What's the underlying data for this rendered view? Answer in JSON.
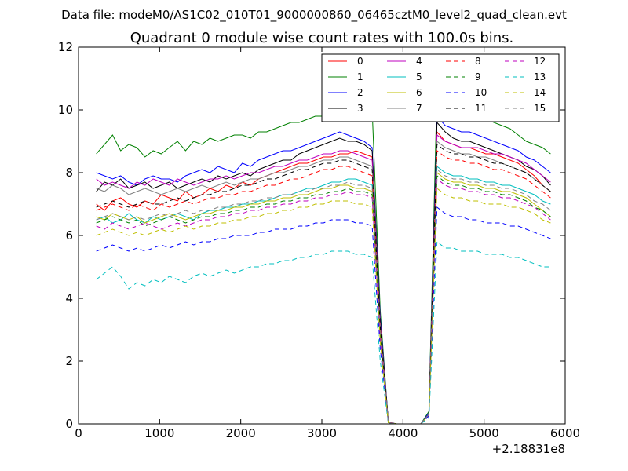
{
  "figure": {
    "suptitle": "Data file: modeM0/AS1C02_010T01_9000000860_06465cztM0_level2_quad_clean.evt"
  },
  "chart_data": {
    "type": "line",
    "title": "Quadrant 0 module wise count rates with 100.0s bins.",
    "xlabel": "",
    "ylabel": "",
    "x_offset_label": "+2.18831e8",
    "xlim": [
      0,
      6000
    ],
    "ylim": [
      0,
      12
    ],
    "xticks": [
      "0",
      "1000",
      "2000",
      "3000",
      "4000",
      "5000",
      "6000"
    ],
    "yticks": [
      "0",
      "2",
      "4",
      "6",
      "8",
      "10",
      "12"
    ],
    "grid": false,
    "legend_placement": "top-right",
    "legend_columns": 4,
    "x": [
      220,
      320,
      420,
      520,
      620,
      720,
      820,
      920,
      1020,
      1120,
      1220,
      1320,
      1420,
      1520,
      1620,
      1720,
      1820,
      1920,
      2020,
      2120,
      2220,
      2320,
      2420,
      2520,
      2620,
      2720,
      2820,
      2920,
      3020,
      3120,
      3220,
      3320,
      3420,
      3520,
      3620,
      3720,
      3820,
      3920,
      4020,
      4120,
      4220,
      4320,
      4420,
      4520,
      4620,
      4720,
      4820,
      4920,
      5020,
      5120,
      5220,
      5320,
      5420,
      5520,
      5620,
      5720,
      5820
    ],
    "series": [
      {
        "name": "0",
        "color": "#ff0000",
        "dash": "solid",
        "values": [
          7.0,
          6.8,
          7.1,
          7.2,
          7.0,
          6.9,
          7.1,
          7.0,
          7.3,
          7.2,
          7.1,
          7.4,
          7.2,
          7.3,
          7.5,
          7.4,
          7.6,
          7.5,
          7.7,
          7.6,
          7.8,
          7.9,
          8.0,
          8.1,
          8.2,
          8.3,
          8.3,
          8.4,
          8.5,
          8.5,
          8.6,
          8.6,
          8.7,
          8.6,
          8.5,
          3.2,
          0.05,
          0.0,
          0.0,
          0.0,
          0.0,
          0.3,
          9.3,
          9.0,
          8.9,
          8.8,
          8.8,
          8.7,
          8.6,
          8.6,
          8.5,
          8.4,
          8.3,
          8.1,
          7.9,
          7.6,
          7.4
        ]
      },
      {
        "name": "1",
        "color": "#008000",
        "dash": "solid",
        "values": [
          8.6,
          8.9,
          9.2,
          8.7,
          8.9,
          8.8,
          8.5,
          8.7,
          8.6,
          8.8,
          9.0,
          8.7,
          9.0,
          8.9,
          9.1,
          9.0,
          9.1,
          9.2,
          9.2,
          9.1,
          9.3,
          9.3,
          9.4,
          9.5,
          9.6,
          9.6,
          9.7,
          9.8,
          9.8,
          9.9,
          10.0,
          10.0,
          10.1,
          10.1,
          10.0,
          3.6,
          0.05,
          0.0,
          0.0,
          0.0,
          0.0,
          0.4,
          10.6,
          10.3,
          10.1,
          10.0,
          9.9,
          9.8,
          9.7,
          9.6,
          9.5,
          9.4,
          9.2,
          9.0,
          8.9,
          8.8,
          8.6
        ]
      },
      {
        "name": "2",
        "color": "#0000ff",
        "dash": "solid",
        "values": [
          8.0,
          7.9,
          7.8,
          7.9,
          7.7,
          7.6,
          7.8,
          7.9,
          7.8,
          7.8,
          7.7,
          7.9,
          8.0,
          8.1,
          8.0,
          8.2,
          8.1,
          8.0,
          8.3,
          8.2,
          8.4,
          8.5,
          8.6,
          8.7,
          8.7,
          8.8,
          8.9,
          9.0,
          9.1,
          9.2,
          9.3,
          9.2,
          9.1,
          9.0,
          8.8,
          3.4,
          0.05,
          0.0,
          0.0,
          0.0,
          0.0,
          0.35,
          9.8,
          9.5,
          9.4,
          9.3,
          9.3,
          9.2,
          9.1,
          9.0,
          8.9,
          8.8,
          8.7,
          8.5,
          8.4,
          8.2,
          8.0
        ]
      },
      {
        "name": "3",
        "color": "#000000",
        "dash": "solid",
        "values": [
          7.4,
          7.7,
          7.6,
          7.8,
          7.5,
          7.6,
          7.7,
          7.5,
          7.6,
          7.7,
          7.5,
          7.6,
          7.7,
          7.8,
          7.7,
          7.9,
          7.8,
          7.9,
          8.0,
          7.9,
          8.1,
          8.2,
          8.3,
          8.4,
          8.4,
          8.6,
          8.7,
          8.8,
          8.9,
          9.0,
          9.1,
          9.0,
          9.0,
          8.9,
          8.7,
          3.3,
          0.05,
          0.0,
          0.0,
          0.0,
          0.0,
          0.3,
          9.6,
          9.3,
          9.1,
          9.0,
          9.0,
          8.9,
          8.8,
          8.7,
          8.6,
          8.5,
          8.4,
          8.2,
          8.1,
          7.9,
          7.6
        ]
      },
      {
        "name": "4",
        "color": "#bf00bf",
        "dash": "solid",
        "values": [
          7.8,
          7.6,
          7.7,
          7.6,
          7.5,
          7.7,
          7.6,
          7.8,
          7.7,
          7.6,
          7.8,
          7.7,
          7.6,
          7.7,
          7.8,
          7.8,
          7.9,
          7.8,
          7.9,
          8.0,
          8.0,
          8.1,
          8.2,
          8.2,
          8.3,
          8.4,
          8.4,
          8.5,
          8.6,
          8.6,
          8.7,
          8.7,
          8.6,
          8.5,
          8.4,
          3.2,
          0.05,
          0.0,
          0.0,
          0.0,
          0.0,
          0.3,
          9.2,
          9.0,
          8.9,
          8.8,
          8.8,
          8.8,
          8.7,
          8.6,
          8.6,
          8.5,
          8.4,
          8.3,
          8.1,
          7.9,
          7.7
        ]
      },
      {
        "name": "5",
        "color": "#00bfbf",
        "dash": "solid",
        "values": [
          6.5,
          6.6,
          6.4,
          6.5,
          6.7,
          6.5,
          6.4,
          6.6,
          6.5,
          6.6,
          6.7,
          6.6,
          6.5,
          6.7,
          6.8,
          6.8,
          6.9,
          6.9,
          7.0,
          7.0,
          7.1,
          7.1,
          7.2,
          7.3,
          7.3,
          7.4,
          7.5,
          7.5,
          7.6,
          7.7,
          7.7,
          7.8,
          7.8,
          7.7,
          7.6,
          2.9,
          0.04,
          0.0,
          0.0,
          0.0,
          0.0,
          0.3,
          8.2,
          8.0,
          7.9,
          7.9,
          7.8,
          7.8,
          7.7,
          7.7,
          7.6,
          7.6,
          7.5,
          7.4,
          7.3,
          7.1,
          7.0
        ]
      },
      {
        "name": "6",
        "color": "#bfbf00",
        "dash": "solid",
        "values": [
          6.6,
          6.5,
          6.7,
          6.6,
          6.5,
          6.6,
          6.4,
          6.5,
          6.6,
          6.7,
          6.6,
          6.5,
          6.6,
          6.7,
          6.7,
          6.8,
          6.8,
          6.9,
          6.9,
          7.0,
          7.0,
          7.1,
          7.1,
          7.2,
          7.2,
          7.3,
          7.3,
          7.4,
          7.5,
          7.5,
          7.6,
          7.6,
          7.5,
          7.5,
          7.4,
          2.8,
          0.04,
          0.0,
          0.0,
          0.0,
          0.0,
          0.3,
          8.0,
          7.8,
          7.7,
          7.7,
          7.6,
          7.6,
          7.5,
          7.5,
          7.4,
          7.4,
          7.3,
          7.2,
          7.0,
          6.8,
          6.6
        ]
      },
      {
        "name": "7",
        "color": "#808080",
        "dash": "solid",
        "values": [
          7.5,
          7.4,
          7.6,
          7.5,
          7.3,
          7.4,
          7.5,
          7.4,
          7.3,
          7.4,
          7.5,
          7.4,
          7.5,
          7.6,
          7.5,
          7.6,
          7.7,
          7.6,
          7.7,
          7.8,
          7.8,
          7.9,
          8.0,
          8.0,
          8.1,
          8.2,
          8.2,
          8.3,
          8.4,
          8.4,
          8.5,
          8.5,
          8.4,
          8.3,
          8.2,
          3.1,
          0.05,
          0.0,
          0.0,
          0.0,
          0.0,
          0.3,
          9.0,
          8.8,
          8.7,
          8.6,
          8.6,
          8.5,
          8.5,
          8.4,
          8.3,
          8.2,
          8.1,
          8.0,
          7.8,
          7.6,
          7.4
        ]
      },
      {
        "name": "8",
        "color": "#ff0000",
        "dash": "dashed",
        "values": [
          6.8,
          6.9,
          7.0,
          6.9,
          6.8,
          7.0,
          6.9,
          6.8,
          7.0,
          6.9,
          7.0,
          7.1,
          7.0,
          7.1,
          7.2,
          7.2,
          7.3,
          7.3,
          7.4,
          7.4,
          7.5,
          7.6,
          7.6,
          7.7,
          7.8,
          7.8,
          7.9,
          8.0,
          8.1,
          8.1,
          8.2,
          8.2,
          8.1,
          8.0,
          7.9,
          3.0,
          0.05,
          0.0,
          0.0,
          0.0,
          0.0,
          0.3,
          8.7,
          8.5,
          8.4,
          8.4,
          8.3,
          8.3,
          8.2,
          8.1,
          8.1,
          8.0,
          7.9,
          7.8,
          7.6,
          7.4,
          7.2
        ]
      },
      {
        "name": "9",
        "color": "#008000",
        "dash": "dashed",
        "values": [
          6.4,
          6.5,
          6.6,
          6.5,
          6.4,
          6.5,
          6.3,
          6.4,
          6.5,
          6.6,
          6.5,
          6.4,
          6.5,
          6.6,
          6.6,
          6.7,
          6.7,
          6.8,
          6.8,
          6.9,
          6.9,
          7.0,
          7.0,
          7.1,
          7.1,
          7.2,
          7.2,
          7.3,
          7.3,
          7.4,
          7.4,
          7.5,
          7.4,
          7.4,
          7.3,
          2.8,
          0.04,
          0.0,
          0.0,
          0.0,
          0.0,
          0.3,
          7.9,
          7.7,
          7.6,
          7.6,
          7.5,
          7.5,
          7.4,
          7.4,
          7.3,
          7.3,
          7.2,
          7.1,
          6.9,
          6.8,
          6.6
        ]
      },
      {
        "name": "10",
        "color": "#0000ff",
        "dash": "dashed",
        "values": [
          5.5,
          5.6,
          5.7,
          5.6,
          5.5,
          5.6,
          5.5,
          5.6,
          5.7,
          5.6,
          5.7,
          5.8,
          5.7,
          5.8,
          5.8,
          5.9,
          5.9,
          6.0,
          6.0,
          6.0,
          6.1,
          6.1,
          6.2,
          6.2,
          6.2,
          6.3,
          6.3,
          6.4,
          6.4,
          6.5,
          6.5,
          6.5,
          6.4,
          6.4,
          6.3,
          2.4,
          0.04,
          0.0,
          0.0,
          0.0,
          0.0,
          0.25,
          6.9,
          6.7,
          6.6,
          6.6,
          6.5,
          6.5,
          6.4,
          6.4,
          6.4,
          6.3,
          6.3,
          6.2,
          6.1,
          6.0,
          5.9
        ]
      },
      {
        "name": "11",
        "color": "#000000",
        "dash": "dashed",
        "values": [
          6.9,
          7.0,
          7.1,
          7.0,
          6.9,
          7.0,
          7.1,
          7.0,
          7.0,
          7.1,
          7.2,
          7.1,
          7.2,
          7.3,
          7.3,
          7.4,
          7.4,
          7.5,
          7.6,
          7.6,
          7.7,
          7.8,
          7.8,
          7.9,
          8.0,
          8.1,
          8.1,
          8.2,
          8.3,
          8.3,
          8.4,
          8.4,
          8.3,
          8.2,
          8.1,
          3.1,
          0.05,
          0.0,
          0.0,
          0.0,
          0.0,
          0.3,
          8.9,
          8.7,
          8.6,
          8.6,
          8.5,
          8.5,
          8.4,
          8.3,
          8.3,
          8.2,
          8.1,
          8.0,
          7.8,
          7.6,
          7.4
        ]
      },
      {
        "name": "12",
        "color": "#bf00bf",
        "dash": "dashed",
        "values": [
          6.3,
          6.2,
          6.4,
          6.3,
          6.2,
          6.3,
          6.4,
          6.3,
          6.2,
          6.3,
          6.4,
          6.3,
          6.4,
          6.5,
          6.5,
          6.6,
          6.6,
          6.7,
          6.7,
          6.8,
          6.8,
          6.9,
          6.9,
          7.0,
          7.0,
          7.1,
          7.1,
          7.2,
          7.2,
          7.3,
          7.3,
          7.4,
          7.3,
          7.3,
          7.2,
          2.7,
          0.04,
          0.0,
          0.0,
          0.0,
          0.0,
          0.3,
          7.8,
          7.6,
          7.5,
          7.5,
          7.4,
          7.4,
          7.3,
          7.3,
          7.2,
          7.2,
          7.1,
          7.0,
          6.9,
          6.7,
          6.5
        ]
      },
      {
        "name": "13",
        "color": "#00bfbf",
        "dash": "dashed",
        "values": [
          4.6,
          4.8,
          5.0,
          4.7,
          4.3,
          4.5,
          4.4,
          4.6,
          4.5,
          4.7,
          4.6,
          4.5,
          4.7,
          4.8,
          4.7,
          4.8,
          4.9,
          4.8,
          4.9,
          5.0,
          5.0,
          5.1,
          5.1,
          5.2,
          5.2,
          5.3,
          5.3,
          5.4,
          5.4,
          5.5,
          5.5,
          5.5,
          5.4,
          5.4,
          5.3,
          2.0,
          0.03,
          0.0,
          0.0,
          0.0,
          0.0,
          0.2,
          5.8,
          5.6,
          5.6,
          5.5,
          5.5,
          5.5,
          5.4,
          5.4,
          5.4,
          5.3,
          5.3,
          5.2,
          5.1,
          5.0,
          5.0
        ]
      },
      {
        "name": "14",
        "color": "#bfbf00",
        "dash": "dashed",
        "values": [
          6.0,
          6.1,
          6.2,
          6.1,
          6.0,
          6.1,
          6.0,
          6.1,
          6.2,
          6.1,
          6.2,
          6.3,
          6.2,
          6.3,
          6.3,
          6.4,
          6.4,
          6.5,
          6.5,
          6.6,
          6.6,
          6.7,
          6.7,
          6.8,
          6.8,
          6.9,
          6.9,
          7.0,
          7.0,
          7.1,
          7.1,
          7.1,
          7.0,
          7.0,
          6.9,
          2.6,
          0.04,
          0.0,
          0.0,
          0.0,
          0.0,
          0.3,
          7.5,
          7.3,
          7.2,
          7.2,
          7.1,
          7.1,
          7.0,
          7.0,
          7.0,
          6.9,
          6.9,
          6.8,
          6.7,
          6.5,
          6.4
        ]
      },
      {
        "name": "15",
        "color": "#808080",
        "dash": "dashed",
        "values": [
          6.5,
          6.6,
          6.7,
          6.6,
          6.5,
          6.6,
          6.5,
          6.6,
          6.7,
          6.6,
          6.7,
          6.8,
          6.7,
          6.8,
          6.8,
          6.9,
          6.9,
          7.0,
          7.0,
          7.1,
          7.1,
          7.2,
          7.2,
          7.3,
          7.3,
          7.4,
          7.4,
          7.5,
          7.5,
          7.6,
          7.6,
          7.7,
          7.6,
          7.6,
          7.5,
          2.9,
          0.04,
          0.0,
          0.0,
          0.0,
          0.0,
          0.3,
          8.1,
          7.9,
          7.8,
          7.8,
          7.7,
          7.7,
          7.6,
          7.6,
          7.5,
          7.5,
          7.4,
          7.3,
          7.1,
          7.0,
          6.8
        ]
      }
    ]
  }
}
